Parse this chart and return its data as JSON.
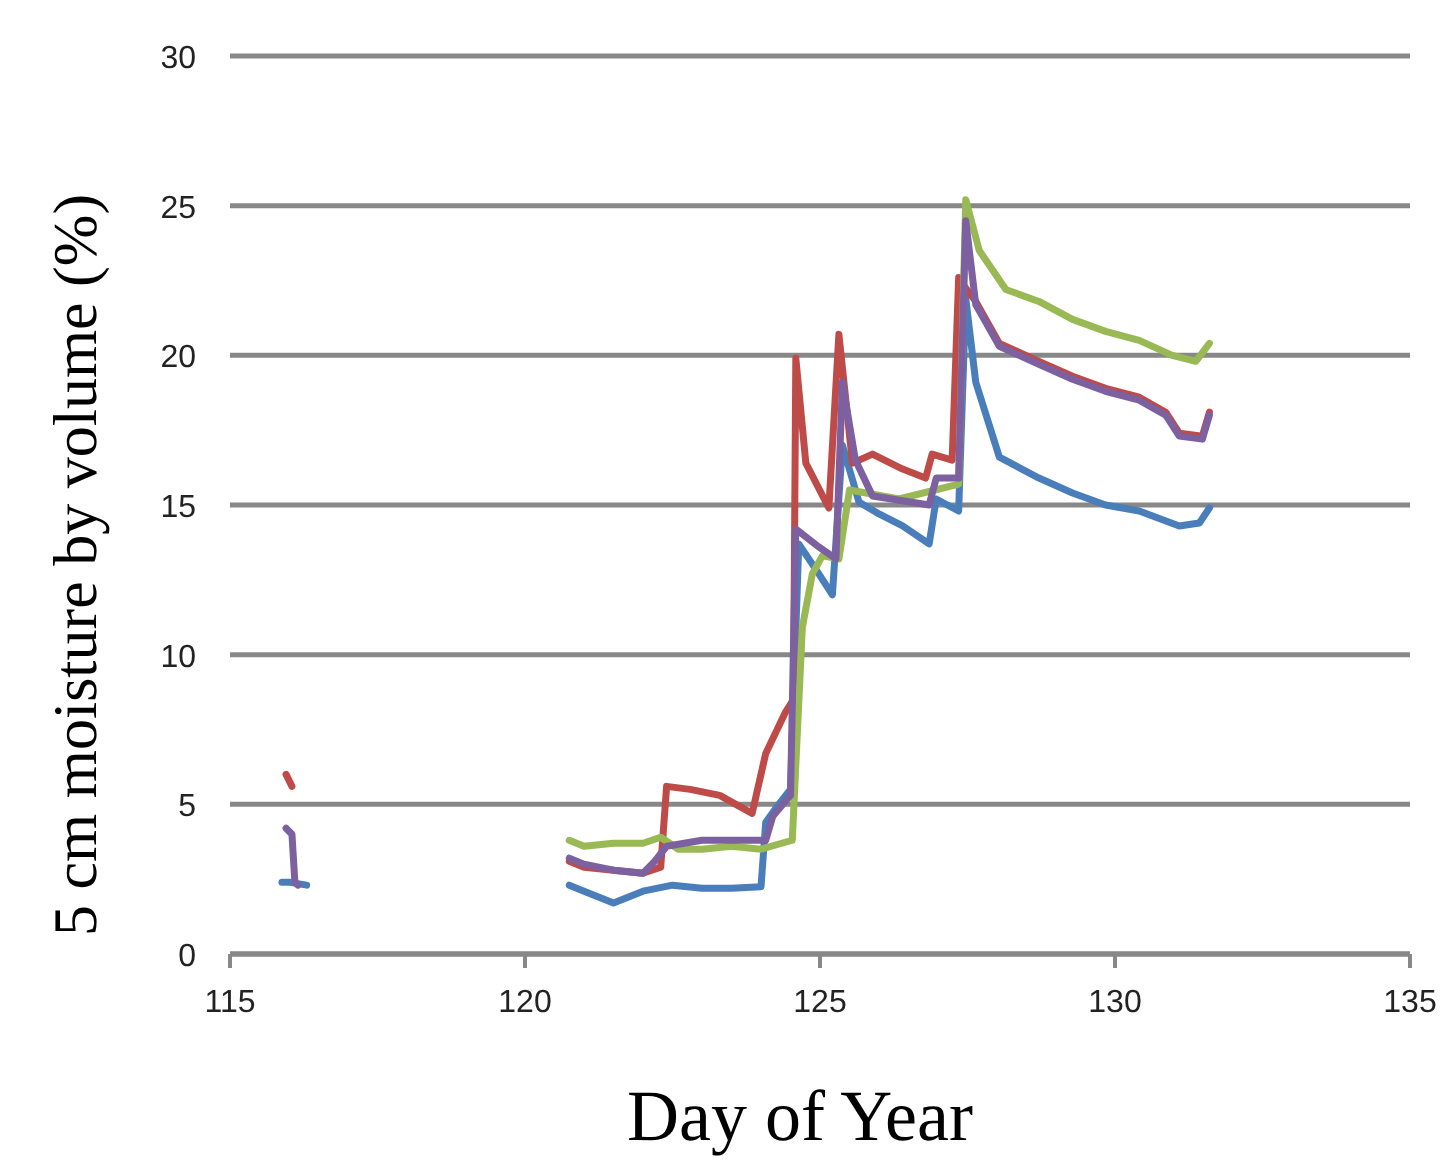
{
  "chart_data": {
    "type": "line",
    "xlabel": "Day of Year",
    "ylabel": "5 cm moisture by volume (%)",
    "xlim": [
      115,
      135
    ],
    "xticks": [
      115,
      120,
      125,
      130,
      135
    ],
    "ylim": [
      0,
      30
    ],
    "yticks": [
      0,
      5,
      10,
      15,
      20,
      25,
      30
    ],
    "grid": "y",
    "marker": "none",
    "line_style": "solid",
    "series": [
      {
        "color": "#4a7ebb",
        "x": [
          115.88,
          116.0,
          116.3,
          116.5,
          120.75,
          121.0,
          121.5,
          122.0,
          122.5,
          123.0,
          123.5,
          124.0,
          124.08,
          124.3,
          124.5,
          124.64,
          124.98,
          125.21,
          125.38,
          125.66,
          126.0,
          126.4,
          126.85,
          126.97,
          127.35,
          127.47,
          127.64,
          128.04,
          128.71,
          129.28,
          129.84,
          130.41,
          131.09,
          131.43,
          131.6
        ],
        "values": [
          2.4,
          2.4,
          2.3,
          null,
          2.3,
          2.1,
          1.7,
          2.1,
          2.3,
          2.2,
          2.2,
          2.25,
          4.4,
          5.0,
          5.5,
          13.7,
          12.7,
          12.0,
          17.0,
          15.1,
          14.7,
          14.3,
          13.7,
          15.2,
          14.8,
          21.9,
          19.1,
          16.6,
          15.9,
          15.4,
          15.0,
          14.8,
          14.3,
          14.4,
          14.9
        ]
      },
      {
        "color": "#be4b48",
        "x": [
          115.95,
          116.05,
          116.2,
          120.75,
          121.0,
          121.5,
          122.0,
          122.3,
          122.4,
          122.8,
          123.3,
          123.85,
          124.08,
          124.42,
          124.55,
          124.59,
          124.76,
          125.15,
          125.32,
          125.55,
          125.89,
          126.4,
          126.79,
          126.9,
          127.24,
          127.35,
          127.45,
          127.64,
          128.04,
          128.71,
          129.28,
          129.84,
          130.41,
          130.86,
          131.09,
          131.48,
          131.6
        ],
        "values": [
          6.0,
          5.6,
          null,
          3.1,
          2.9,
          2.8,
          2.7,
          2.9,
          5.6,
          5.5,
          5.3,
          4.7,
          6.7,
          8.1,
          8.5,
          19.9,
          16.4,
          14.9,
          20.7,
          16.4,
          16.7,
          16.2,
          15.9,
          16.7,
          16.5,
          22.6,
          22.3,
          21.8,
          20.4,
          19.8,
          19.3,
          18.9,
          18.6,
          18.1,
          17.4,
          17.3,
          18.1
        ]
      },
      {
        "color": "#98b954",
        "x": [
          120.75,
          121.0,
          121.5,
          122.0,
          122.3,
          122.6,
          123.0,
          123.5,
          124.0,
          124.53,
          124.7,
          124.87,
          125.04,
          125.32,
          125.5,
          126.34,
          127.35,
          127.47,
          127.7,
          128.15,
          128.71,
          129.28,
          129.84,
          130.41,
          130.97,
          131.37,
          131.6
        ],
        "values": [
          3.8,
          3.6,
          3.7,
          3.7,
          3.9,
          3.5,
          3.5,
          3.6,
          3.5,
          3.8,
          10.9,
          12.7,
          13.3,
          13.2,
          15.5,
          15.2,
          15.7,
          25.2,
          23.5,
          22.2,
          21.8,
          21.2,
          20.8,
          20.5,
          20.0,
          19.8,
          20.4
        ]
      },
      {
        "color": "#7d60a0",
        "x": [
          115.95,
          116.05,
          116.1,
          116.15,
          116.5,
          120.75,
          121.0,
          121.5,
          122.0,
          122.2,
          122.4,
          123.0,
          124.08,
          124.2,
          124.5,
          124.59,
          124.98,
          125.27,
          125.38,
          125.6,
          125.89,
          126.85,
          126.97,
          127.35,
          127.47,
          127.64,
          128.04,
          128.71,
          129.28,
          129.84,
          130.41,
          130.86,
          131.09,
          131.48,
          131.6
        ],
        "values": [
          4.2,
          4.0,
          2.4,
          2.3,
          null,
          3.2,
          3.0,
          2.8,
          2.7,
          3.1,
          3.6,
          3.8,
          3.8,
          4.6,
          5.3,
          14.2,
          13.6,
          13.2,
          19.1,
          16.5,
          15.3,
          15.0,
          15.9,
          15.9,
          24.5,
          21.7,
          20.3,
          19.7,
          19.2,
          18.8,
          18.5,
          18.0,
          17.3,
          17.2,
          18.0
        ]
      }
    ]
  }
}
